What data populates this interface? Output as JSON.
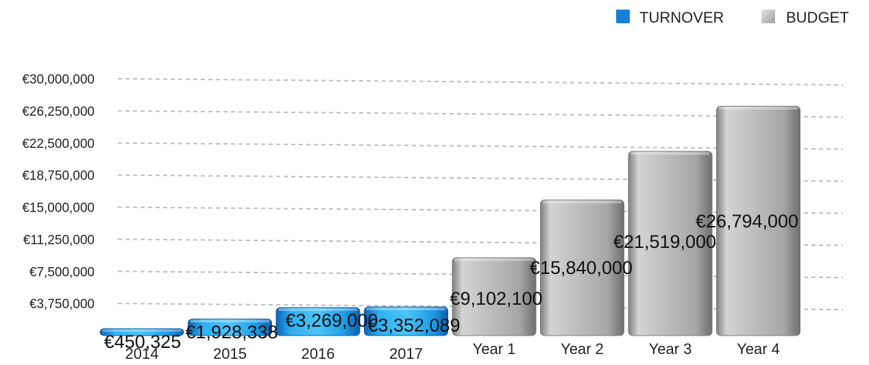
{
  "chart_data": {
    "type": "bar",
    "categories": [
      "2014",
      "2015",
      "2016",
      "2017",
      "Year 1",
      "Year 2",
      "Year 3",
      "Year 4"
    ],
    "series": [
      {
        "name": "TURNOVER",
        "color": "#1a8fe0",
        "values": [
          450325,
          1928338,
          3269000,
          3352089,
          null,
          null,
          null,
          null
        ]
      },
      {
        "name": "BUDGET",
        "color": "#b4b4b4",
        "values": [
          null,
          null,
          null,
          null,
          9102100,
          15840000,
          21519000,
          26794000
        ]
      }
    ],
    "data_labels": [
      "€450,325",
      "€1,928,338",
      "€3,269,000",
      "€3,352,089",
      "€9,102,100",
      "€15,840,000",
      "€21,519,000",
      "€26,794,000"
    ],
    "ylim": [
      0,
      30000000
    ],
    "yticks": [
      "€3,750,000",
      "€7,500,000",
      "€11,250,000",
      "€15,000,000",
      "€18,750,000",
      "€22,500,000",
      "€26,250,000",
      "€30,000,000"
    ],
    "ytick_values": [
      3750000,
      7500000,
      11250000,
      15000000,
      18750000,
      22500000,
      26250000,
      30000000
    ],
    "grid": true,
    "legend_position": "top-right",
    "title": "",
    "xlabel": "",
    "ylabel": ""
  }
}
